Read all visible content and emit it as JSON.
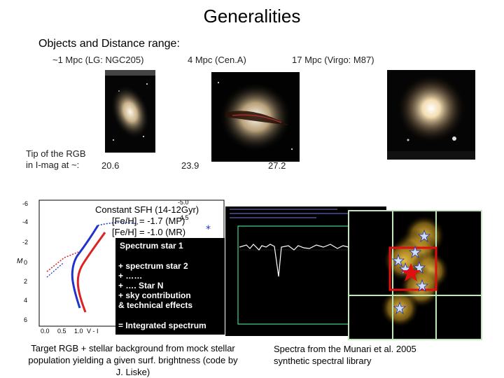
{
  "slide": {
    "title": "Generalities",
    "subtitle": "Objects and Distance range:",
    "objects": [
      {
        "label": "~1 Mpc (LG: NGC205)",
        "tip_value": "20.6"
      },
      {
        "label": "4 Mpc (Cen.A)",
        "tip_value": "23.9"
      },
      {
        "label": "17 Mpc (Virgo: M87)",
        "tip_value": "27.2"
      }
    ],
    "tip_label_line1": "Tip of the RGB",
    "tip_label_line2": "in I-mag at ~:",
    "sfh_line1": "Constant SFH (14-12Gyr)",
    "sfh_line2": "[Fe/H] = -1.7 (MP)",
    "sfh_line3": "[Fe/H] = -1.0 (MR)",
    "spectrum_list": [
      "Spectrum star 1",
      "+ spectrum star 2",
      "+ ……",
      "+ …. Star N",
      "+ sky contribution",
      "& technical effects",
      "= Integrated spectrum"
    ],
    "caption_left_line1": "Target RGB + stellar background from mock stellar",
    "caption_left_line2": "population yielding a given surf. brightness (code by",
    "caption_left_line3": "J. Liske)",
    "caption_right_line1": "Spectra from the Munari et al. 2005",
    "caption_right_line2": "synthetic spectral library",
    "cmd_axis": {
      "y_ticks": [
        "-6",
        "-4",
        "-2",
        "0",
        "2",
        "4",
        "6"
      ],
      "x_ticks": [
        "0.0",
        "0.5",
        "1.0"
      ],
      "ylabel": "M",
      "xlabel": "V - I",
      "top_ticks": [
        "-5.0",
        "-4.5"
      ]
    },
    "colors": {
      "mp_track": "#2233cc",
      "mr_track": "#dd2222",
      "panel_bg": "#000000",
      "highlight": "#e01010"
    }
  }
}
